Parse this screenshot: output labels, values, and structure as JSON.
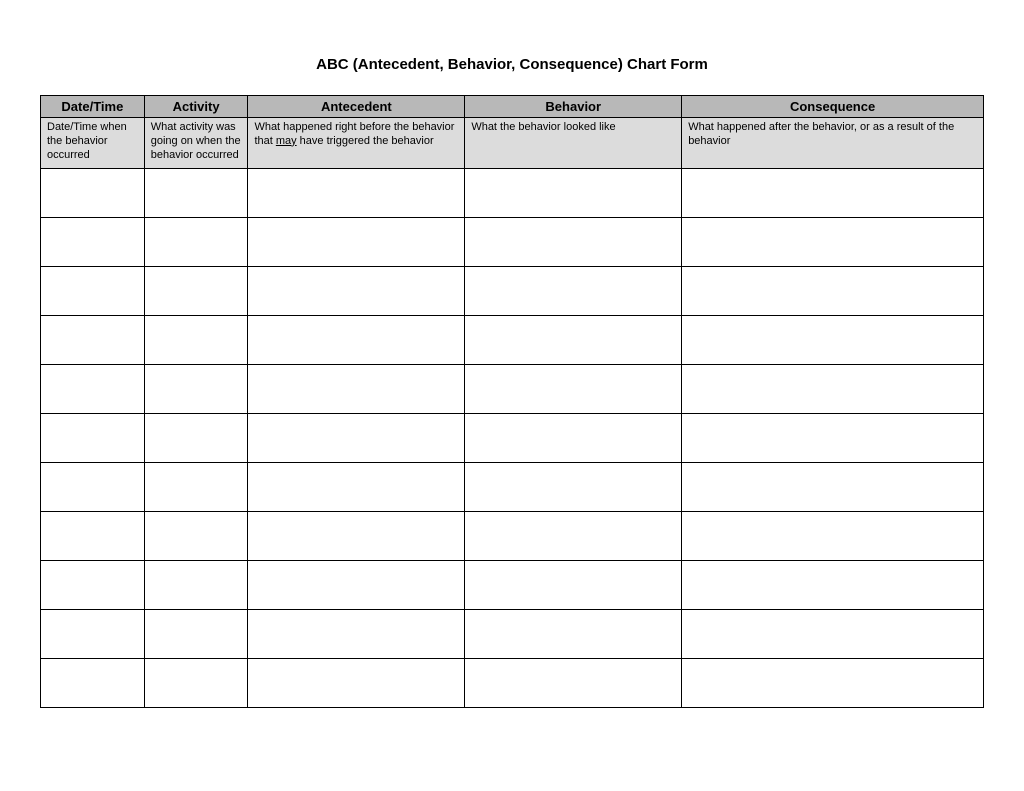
{
  "title": "ABC (Antecedent, Behavior, Consequence) Chart Form",
  "table": {
    "header_bg": "#b8b8b8",
    "desc_bg": "#dcdcdc",
    "border_color": "#000000",
    "column_widths_pct": [
      11,
      11,
      23,
      23,
      32
    ],
    "columns": [
      {
        "header": "Date/Time",
        "desc_pre": "Date/Time when the behavior occurred",
        "desc_u": "",
        "desc_post": ""
      },
      {
        "header": "Activity",
        "desc_pre": "What activity was going on when the behavior occurred",
        "desc_u": "",
        "desc_post": ""
      },
      {
        "header": "Antecedent",
        "desc_pre": "What happened right before the behavior that ",
        "desc_u": "may",
        "desc_post": " have triggered the behavior"
      },
      {
        "header": "Behavior",
        "desc_pre": "What the behavior looked like",
        "desc_u": "",
        "desc_post": ""
      },
      {
        "header": "Consequence",
        "desc_pre": "What happened after the behavior, or as a result of the behavior",
        "desc_u": "",
        "desc_post": ""
      }
    ],
    "body_row_count": 11
  }
}
